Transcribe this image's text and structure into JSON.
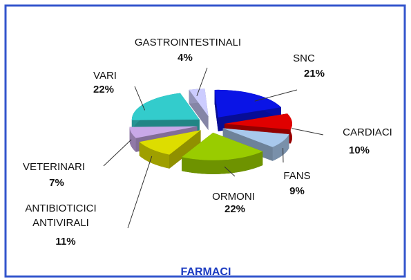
{
  "chart_data": {
    "type": "pie3d",
    "title": "FARMACI",
    "categories": [
      "SNC",
      "CARDIACI",
      "FANS",
      "ORMONI",
      "ANTIBIOTICICI ANTIVIRALI",
      "VETERINARI",
      "VARI",
      "GASTROINTESTINALI"
    ],
    "values": [
      21,
      10,
      9,
      22,
      11,
      7,
      22,
      4
    ],
    "value_labels": [
      "21%",
      "10%",
      "9%",
      "22%",
      "11%",
      "7%",
      "22%",
      "4%"
    ],
    "colors": [
      "#0a14e6",
      "#e00000",
      "#a8c8ec",
      "#99cc00",
      "#dddd00",
      "#c8a8e8",
      "#33cccc",
      "#ccccff"
    ]
  }
}
